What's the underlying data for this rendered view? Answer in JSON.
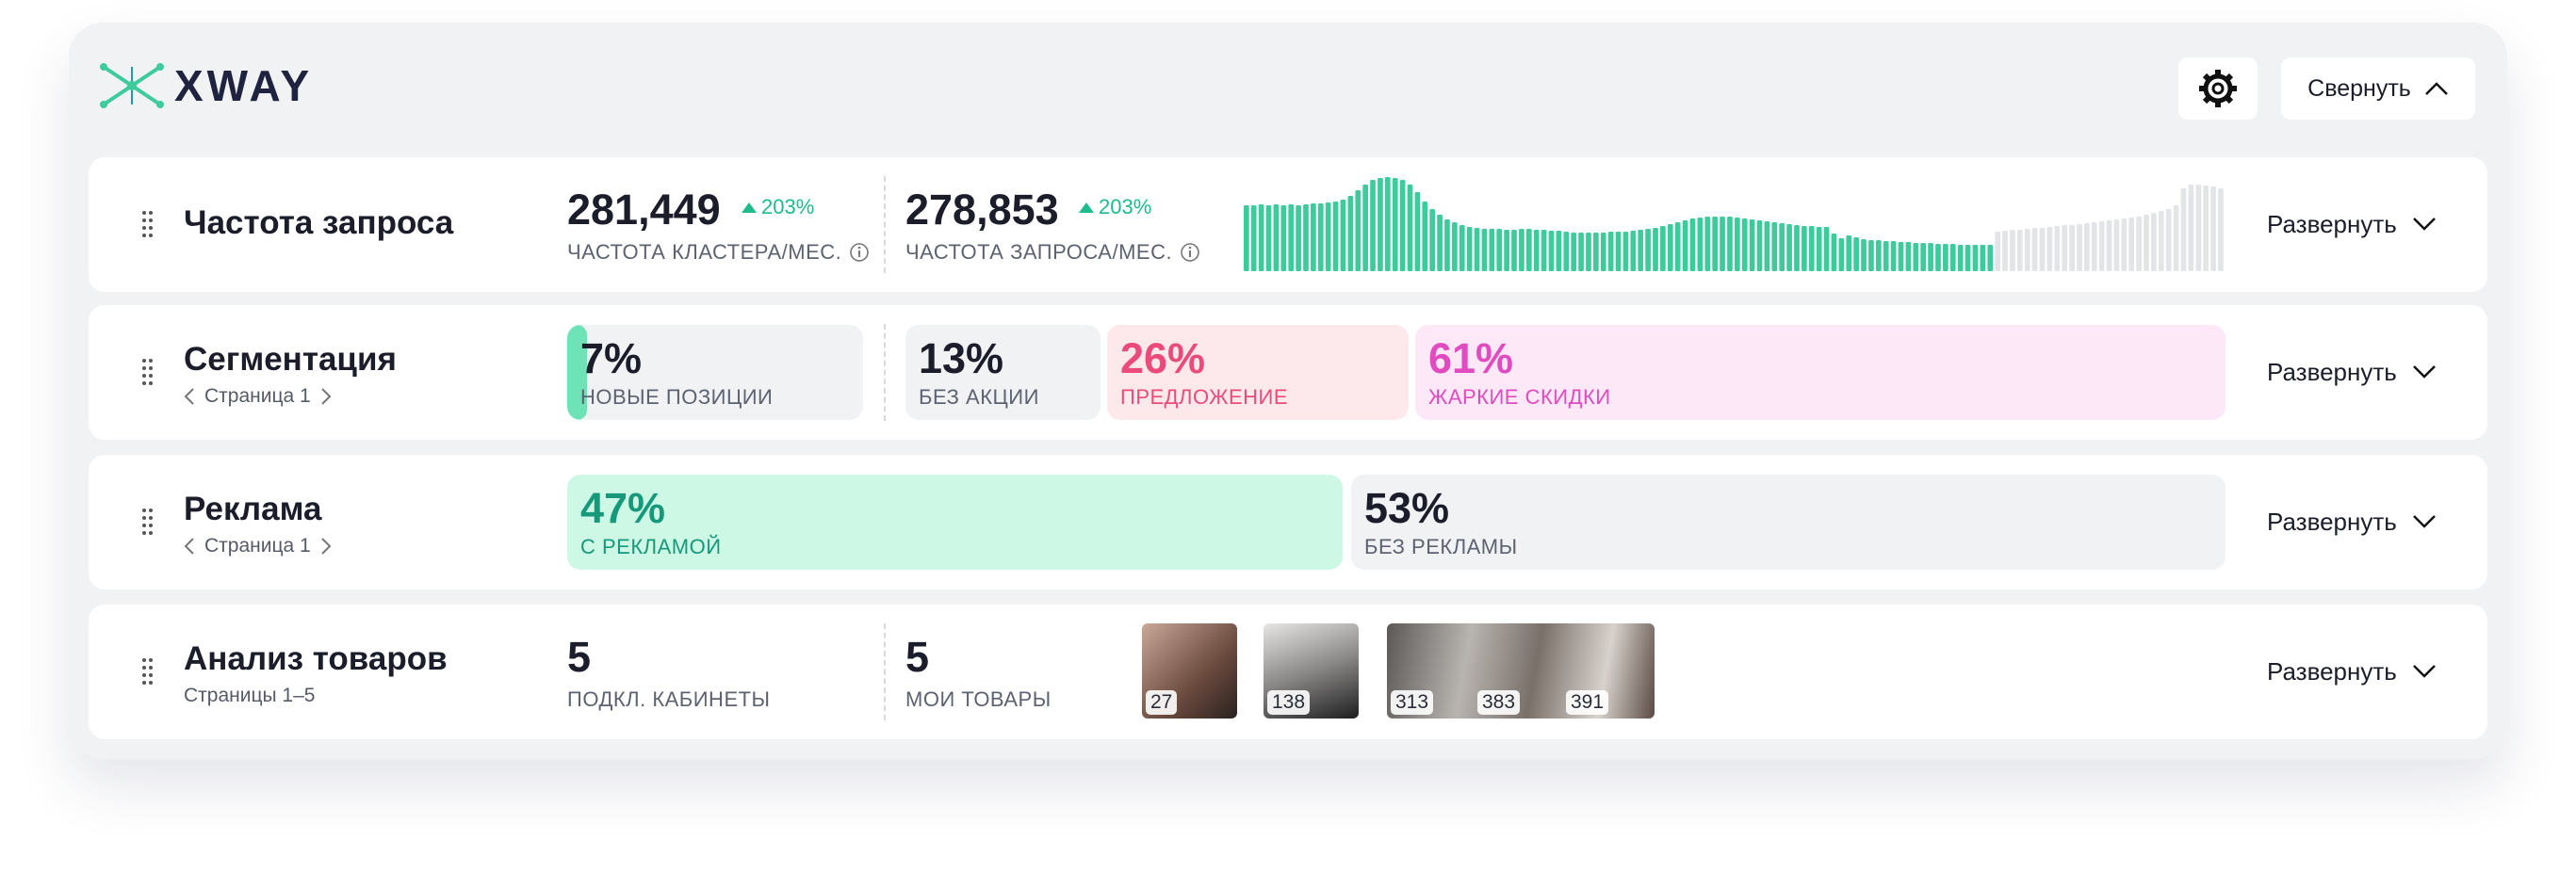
{
  "header": {
    "logo": "XWAY",
    "collapse_button": "Свернуть"
  },
  "rows": [
    {
      "title": "Частота запроса",
      "expand_button": "Развернуть",
      "metrics": [
        {
          "value": "281,449",
          "change": "203%",
          "label": "ЧАСТОТА КЛАСТЕРА/МЕС."
        },
        {
          "value": "278,853",
          "change": "203%",
          "label": "ЧАСТОТА ЗАПРОСА/МЕС."
        }
      ],
      "sparkline": {
        "ylim": [
          0,
          100
        ],
        "series": [
          {
            "color": "#3ecb9c",
            "values": [
              70,
              70,
              71,
              70,
              71,
              70,
              71,
              70,
              71,
              72,
              72,
              73,
              74,
              76,
              80,
              86,
              92,
              97,
              99,
              100,
              99,
              97,
              92,
              84,
              74,
              66,
              60,
              55,
              52,
              49,
              47,
              46,
              45,
              45,
              45,
              44,
              44,
              45,
              45,
              44,
              44,
              43,
              43,
              42,
              41,
              41,
              41,
              41,
              41,
              42,
              42,
              42,
              43,
              44,
              45,
              46,
              48,
              50,
              52,
              54,
              56,
              57,
              58,
              58,
              58,
              58,
              57,
              56,
              55,
              54,
              53,
              52,
              51,
              50,
              49,
              48,
              48,
              47,
              47,
              40,
              35,
              38,
              36,
              34,
              33,
              33,
              32,
              32,
              31,
              31,
              30,
              30,
              30,
              29,
              29,
              29,
              28,
              28,
              28,
              28,
              28
            ]
          },
          {
            "color": "#e3e4e7",
            "values": [
              42,
              43,
              44,
              44,
              45,
              46,
              46,
              47,
              48,
              49,
              49,
              50,
              51,
              52,
              53,
              54,
              55,
              56,
              57,
              58,
              60,
              62,
              64,
              66,
              70,
              88,
              92,
              92,
              91,
              90,
              88
            ]
          }
        ]
      }
    },
    {
      "title": "Сегментация",
      "subtitle": "Страница 1",
      "expand_button": "Развернуть",
      "segments": [
        {
          "value": "7%",
          "label": "НОВЫЕ ПОЗИЦИИ"
        },
        {
          "value": "13%",
          "label": "БЕЗ АКЦИИ"
        },
        {
          "value": "26%",
          "label": "ПРЕДЛОЖЕНИЕ"
        },
        {
          "value": "61%",
          "label": "ЖАРКИЕ СКИДКИ"
        }
      ]
    },
    {
      "title": "Реклама",
      "subtitle": "Страница 1",
      "expand_button": "Развернуть",
      "segments": [
        {
          "value": "47%",
          "label": "С РЕКЛАМОЙ"
        },
        {
          "value": "53%",
          "label": "БЕЗ РЕКЛАМЫ"
        }
      ]
    },
    {
      "title": "Анализ товаров",
      "subtitle": "Страницы 1–5",
      "expand_button": "Развернуть",
      "metrics": [
        {
          "value": "5",
          "label": "ПОДКЛ. КАБИНЕТЫ"
        },
        {
          "value": "5",
          "label": "МОИ ТОВАРЫ"
        }
      ],
      "thumbnails": [
        "27",
        "138",
        "313",
        "383",
        "391"
      ]
    }
  ]
}
